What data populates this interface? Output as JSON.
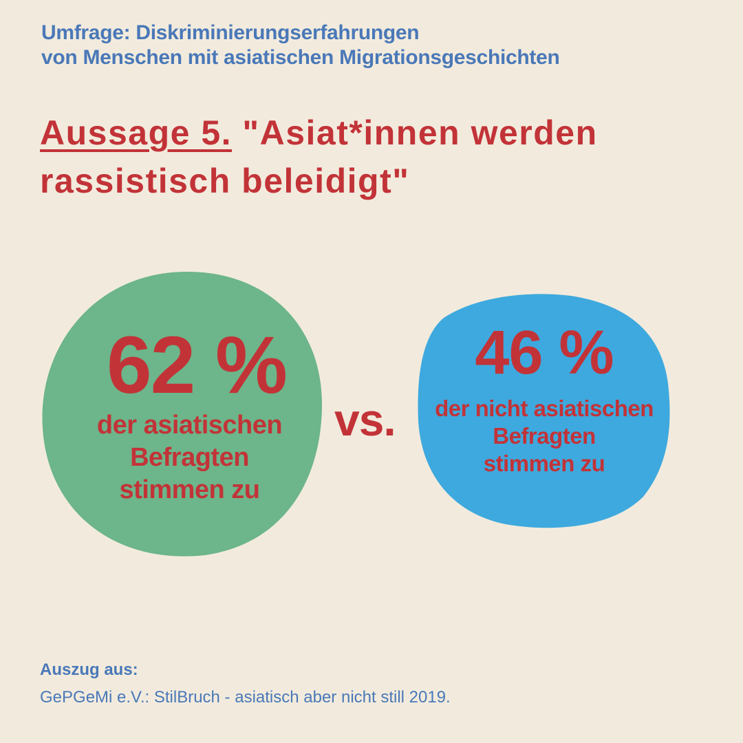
{
  "header": {
    "line1": "Umfrage: Diskriminierungserfahrungen",
    "line2": "von Menschen mit asiatischen Migrationsgeschichten"
  },
  "headline": {
    "lead": "Aussage 5.",
    "statement_line1": "\"Asiat*innen werden",
    "statement_line2": "rassistisch beleidigt\""
  },
  "colors": {
    "background": "#f2ebdd",
    "header_blue": "#4a78b8",
    "accent_red": "#c23338",
    "green_blob": "#6db58a",
    "blue_blob": "#3ea9de"
  },
  "comparison": {
    "asian": {
      "percent_text": "62 %",
      "percent_value": 62,
      "caption_line1": "der asiatischen",
      "caption_line2": "Befragten",
      "caption_line3": "stimmen zu"
    },
    "vs_label": "vs.",
    "non_asian": {
      "percent_text": "46 %",
      "percent_value": 46,
      "caption_line1": "der nicht asiatischen",
      "caption_line2": "Befragten",
      "caption_line3": "stimmen zu"
    }
  },
  "source": {
    "label": "Auszug aus:",
    "text": "GePGeMi e.V.: StilBruch - asiatisch aber nicht still 2019."
  }
}
